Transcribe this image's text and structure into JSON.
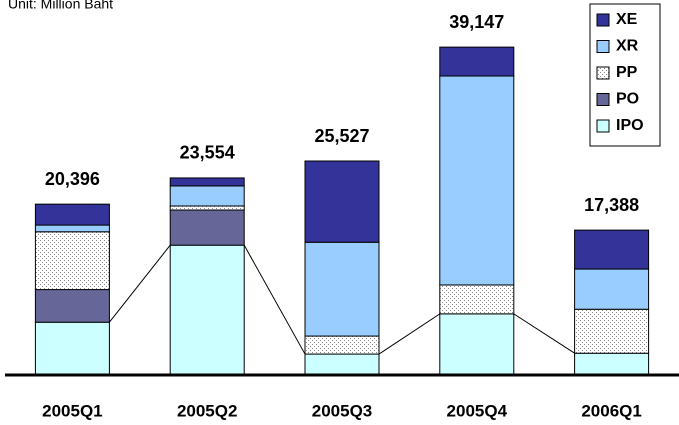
{
  "chart_data": {
    "type": "stacked_bar",
    "subtitle": "Unit: Million Baht",
    "categories": [
      "2005Q1",
      "2005Q2",
      "2005Q3",
      "2005Q4",
      "2006Q1"
    ],
    "series": [
      {
        "name": "XE",
        "color": "#333399",
        "values": [
          2500,
          950,
          9700,
          3450,
          4650
        ]
      },
      {
        "name": "XR",
        "color": "#99ccff",
        "values": [
          800,
          2400,
          11200,
          24950,
          4800
        ]
      },
      {
        "name": "PP",
        "color": "#ffffff",
        "pattern": "dots",
        "values": [
          6900,
          480,
          2150,
          3450,
          5250
        ]
      },
      {
        "name": "PO",
        "color": "#666699",
        "values": [
          3900,
          4200,
          0,
          0,
          0
        ]
      },
      {
        "name": "IPO",
        "color": "#ccffff",
        "values": [
          6300,
          15500,
          2500,
          7300,
          2600
        ]
      }
    ],
    "totals": {
      "values": [
        20396,
        23554,
        25527,
        39147,
        17388
      ],
      "value_labels": [
        "20,396",
        "23,554",
        "25,527",
        "39,147",
        "17,388"
      ]
    },
    "ylim": [
      0,
      40000
    ],
    "legend": "top-right"
  }
}
